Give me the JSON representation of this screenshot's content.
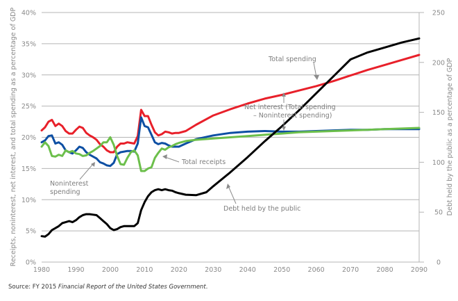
{
  "chart_data": {
    "type": "line",
    "title": "",
    "xlabel": "",
    "ylabel": "Receipts, noninterest, net interest, and total spending as a percentage of GDP",
    "y2label": "Debt held by the public as a percentage of GDP",
    "xlim": [
      1980,
      2090
    ],
    "ylim": [
      0,
      40
    ],
    "y2lim": [
      0,
      250
    ],
    "grid": true,
    "x_ticks": [
      "1980",
      "1990",
      "2000",
      "2010",
      "2020",
      "2030",
      "2040",
      "2050",
      "2060",
      "2070",
      "2080",
      "2090"
    ],
    "y_ticks": [
      "0%",
      "5%",
      "10%",
      "15%",
      "20%",
      "25%",
      "30%",
      "35%",
      "40%"
    ],
    "y2_ticks": [
      "0",
      "50",
      "100",
      "150",
      "200",
      "250"
    ],
    "series": [
      {
        "name": "Total spending",
        "axis": "left",
        "color": "#e8202a",
        "x": [
          1980,
          1981,
          1982,
          1983,
          1984,
          1985,
          1986,
          1987,
          1988,
          1989,
          1990,
          1991,
          1992,
          1993,
          1994,
          1995,
          1996,
          1997,
          1998,
          1999,
          2000,
          2001,
          2002,
          2003,
          2004,
          2005,
          2006,
          2007,
          2008,
          2009,
          2010,
          2011,
          2012,
          2013,
          2014,
          2015,
          2016,
          2017,
          2018,
          2019,
          2020,
          2022,
          2025,
          2030,
          2035,
          2040,
          2045,
          2050,
          2055,
          2060,
          2065,
          2070,
          2075,
          2080,
          2085,
          2090
        ],
        "values": [
          21.1,
          21.6,
          22.5,
          22.8,
          21.8,
          22.2,
          21.8,
          21.0,
          20.6,
          20.6,
          21.2,
          21.7,
          21.5,
          20.7,
          20.3,
          20.0,
          19.6,
          18.9,
          18.5,
          17.9,
          17.6,
          17.6,
          18.5,
          19.0,
          19.0,
          19.2,
          19.1,
          19.0,
          20.2,
          24.4,
          23.4,
          23.4,
          22.0,
          20.8,
          20.3,
          20.5,
          20.9,
          20.8,
          20.6,
          20.7,
          20.7,
          21.0,
          22.0,
          23.5,
          24.5,
          25.4,
          26.2,
          26.8,
          27.5,
          28.2,
          29.0,
          29.9,
          30.8,
          31.6,
          32.4,
          33.2
        ]
      },
      {
        "name": "Noninterest spending",
        "axis": "left",
        "color": "#0d4fa3",
        "x": [
          1980,
          1981,
          1982,
          1983,
          1984,
          1985,
          1986,
          1987,
          1988,
          1989,
          1990,
          1991,
          1992,
          1993,
          1994,
          1995,
          1996,
          1997,
          1998,
          1999,
          2000,
          2001,
          2002,
          2003,
          2004,
          2005,
          2006,
          2007,
          2008,
          2009,
          2010,
          2011,
          2012,
          2013,
          2014,
          2015,
          2016,
          2017,
          2018,
          2019,
          2020,
          2022,
          2025,
          2030,
          2035,
          2040,
          2045,
          2050,
          2055,
          2060,
          2065,
          2070,
          2075,
          2080,
          2085,
          2090
        ],
        "values": [
          19.2,
          19.5,
          20.2,
          20.3,
          19.0,
          19.2,
          18.8,
          17.9,
          17.6,
          17.4,
          17.9,
          18.5,
          18.3,
          17.6,
          17.2,
          16.9,
          16.6,
          16.0,
          15.8,
          15.5,
          15.4,
          15.9,
          17.3,
          17.6,
          17.7,
          17.8,
          17.8,
          17.7,
          19.0,
          23.2,
          21.8,
          21.6,
          20.4,
          19.2,
          18.9,
          19.1,
          19.0,
          18.7,
          18.5,
          18.5,
          18.5,
          19.0,
          19.7,
          20.3,
          20.7,
          20.9,
          21.0,
          20.9,
          20.9,
          21.0,
          21.1,
          21.2,
          21.2,
          21.3,
          21.3,
          21.3
        ]
      },
      {
        "name": "Total receipts",
        "axis": "left",
        "color": "#6cbf4b",
        "x": [
          1980,
          1981,
          1982,
          1983,
          1984,
          1985,
          1986,
          1987,
          1988,
          1989,
          1990,
          1991,
          1992,
          1993,
          1994,
          1995,
          1996,
          1997,
          1998,
          1999,
          2000,
          2001,
          2002,
          2003,
          2004,
          2005,
          2006,
          2007,
          2008,
          2009,
          2010,
          2011,
          2012,
          2013,
          2014,
          2015,
          2016,
          2017,
          2018,
          2019,
          2020,
          2022,
          2025,
          2030,
          2035,
          2040,
          2045,
          2050,
          2055,
          2060,
          2065,
          2070,
          2075,
          2080,
          2085,
          2090
        ],
        "values": [
          18.5,
          19.2,
          18.6,
          17.0,
          16.9,
          17.2,
          17.0,
          17.9,
          17.6,
          17.8,
          17.4,
          17.3,
          17.0,
          17.1,
          17.5,
          17.8,
          18.2,
          18.6,
          19.2,
          19.2,
          20.0,
          18.8,
          17.0,
          15.7,
          15.6,
          16.7,
          17.6,
          17.9,
          17.1,
          14.6,
          14.6,
          15.0,
          15.2,
          16.7,
          17.5,
          18.2,
          18.0,
          18.4,
          18.6,
          18.9,
          19.1,
          19.4,
          19.6,
          19.8,
          20.0,
          20.2,
          20.4,
          20.6,
          20.8,
          20.9,
          21.0,
          21.1,
          21.2,
          21.3,
          21.4,
          21.5
        ]
      },
      {
        "name": "Debt held by the public",
        "axis": "right",
        "color": "#000000",
        "x": [
          1980,
          1981,
          1982,
          1983,
          1984,
          1985,
          1986,
          1987,
          1988,
          1989,
          1990,
          1991,
          1992,
          1993,
          1994,
          1995,
          1996,
          1997,
          1998,
          1999,
          2000,
          2001,
          2002,
          2003,
          2004,
          2005,
          2006,
          2007,
          2008,
          2009,
          2010,
          2011,
          2012,
          2013,
          2014,
          2015,
          2016,
          2017,
          2018,
          2019,
          2020,
          2022,
          2025,
          2028,
          2030,
          2035,
          2040,
          2045,
          2050,
          2055,
          2060,
          2065,
          2070,
          2075,
          2080,
          2085,
          2090
        ],
        "values": [
          26,
          25.5,
          28,
          32,
          34,
          36,
          39,
          40,
          41,
          40,
          42,
          45,
          47,
          48,
          48,
          47.5,
          47,
          44,
          41,
          38,
          34,
          32,
          33,
          35,
          36,
          36,
          36,
          36,
          39,
          52,
          60,
          66,
          70,
          72,
          73,
          72,
          73,
          72,
          71.5,
          70,
          69,
          67.5,
          67,
          70,
          76,
          90,
          105,
          121,
          136,
          152,
          169,
          186,
          203,
          210,
          215,
          220,
          224
        ]
      }
    ],
    "annotations": [
      {
        "text": "Total spending"
      },
      {
        "text": "Net interest (Total spending"
      },
      {
        "text": "– Noninterest spending)"
      },
      {
        "text": "Total receipts"
      },
      {
        "text": "Noninterest"
      },
      {
        "text": "spending"
      },
      {
        "text": "Debt held by the public"
      }
    ],
    "legend": "none"
  },
  "source": {
    "prefix": "Source: FY 2015 ",
    "italic": "Financial Report of the United States Government",
    "suffix": "."
  }
}
